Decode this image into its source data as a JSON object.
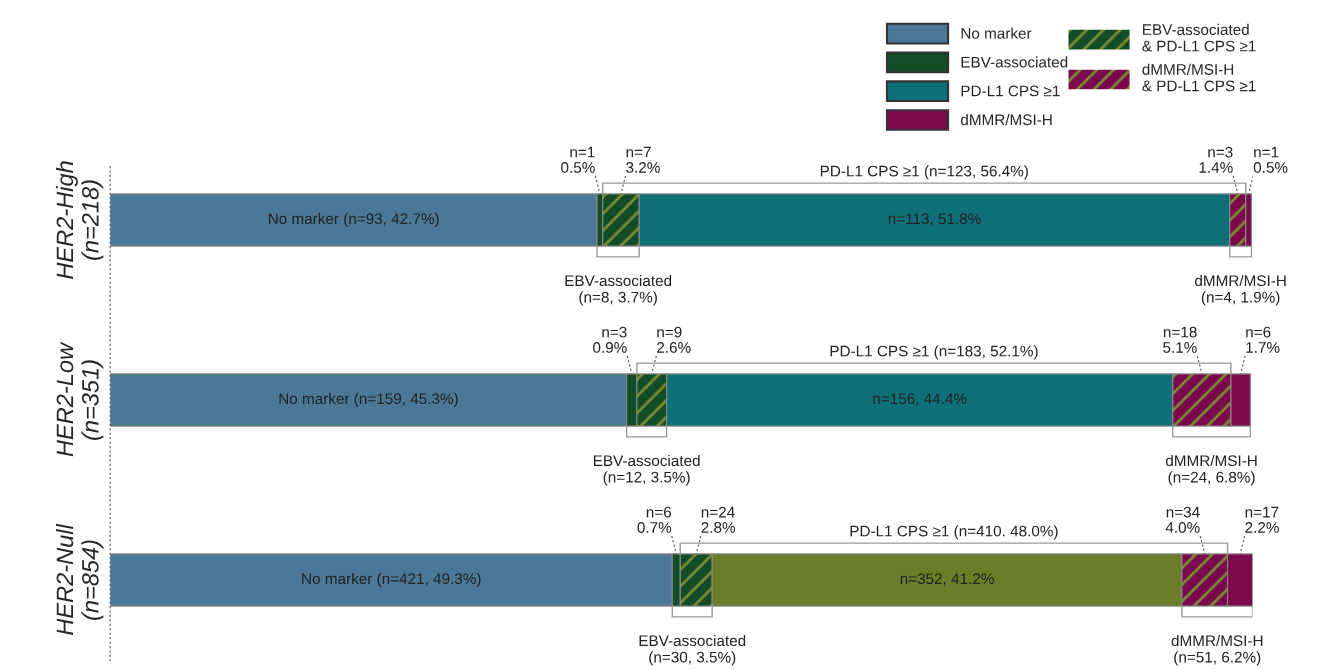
{
  "chart_data": {
    "type": "bar",
    "orientation": "horizontal",
    "stacked": true,
    "tick_labels": "y",
    "legend": "top right",
    "grid": false,
    "categories": [
      "HER2-High\n(n=218)",
      "HER2-Low\n(n=351)",
      "HER2-Null\n(n=854)"
    ],
    "series": [
      {
        "name": "No marker",
        "color": "#4a7896",
        "values": [
          42.7,
          45.3,
          49.3
        ],
        "value_labels": [
          "No marker (n=93, 42.7%)",
          "No marker (n=159, 45.3%)",
          "No marker (n=421, 49.3%)"
        ]
      },
      {
        "name": "EBV-associated",
        "color": "#134d27",
        "values": [
          0.5,
          0.9,
          0.7
        ],
        "value_labels": [
          "n=1\n0.5%",
          "n=3\n0.9%",
          "n=6\n0.7%"
        ]
      },
      {
        "name": "EBV-associated\n& PD-L1 CPS ≥1",
        "color": "#134d27",
        "values": [
          3.2,
          2.6,
          2.8
        ],
        "value_labels": [
          "n=7\n3.2%",
          "n=9\n2.6%",
          "n=24\n2.8%"
        ]
      },
      {
        "name": "PD-L1 CPS ≥1",
        "color": "#0e7079",
        "colors": [
          "#0e7079",
          "#0e7079",
          "#6b7d28"
        ],
        "values": [
          51.8,
          44.4,
          41.2
        ],
        "value_labels": [
          "n=113, 51.8%",
          "n=156, 44.4%",
          "n=352, 41.2%"
        ]
      },
      {
        "name": "dMMR/MSI-H\n& PD-L1 CPS ≥1",
        "color": "#7b0a4c",
        "values": [
          1.4,
          5.1,
          4.0
        ],
        "value_labels": [
          "n=3\n1.4%",
          "n=18\n5.1%",
          "n=34\n4.0%"
        ]
      },
      {
        "name": "dMMR/MSI-H",
        "color": "#7b0a4c",
        "values": [
          0.5,
          1.7,
          2.2
        ],
        "value_labels": [
          "n=1\n0.5%",
          "n=6\n1.7%",
          "n=17\n2.2%"
        ]
      }
    ],
    "annotations": [
      "PD-L1 CPS ≥1 (n=123, 56.4%)",
      "EBV-associated\n(n=8, 3.7%)",
      "dMMR/MSI-H\n(n=4, 1.9%)",
      "PD-L1 CPS ≥1 (n=183, 52.1%)",
      "EBV-associated\n(n=12, 3.5%)",
      "dMMR/MSI-H\n(n=24, 6.8%)",
      "PD-L1 CPS ≥1 (n=410. 48.0%)",
      "EBV-associated\n(n=30, 3.5%)",
      "dMMR/MSI-H\n(n=51, 6.2%)"
    ]
  }
}
